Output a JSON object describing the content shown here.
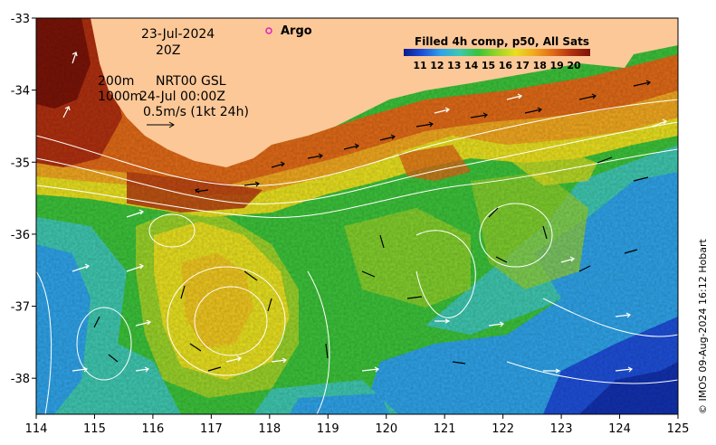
{
  "map": {
    "lon_ticks": [
      "114",
      "115",
      "116",
      "117",
      "118",
      "119",
      "120",
      "121",
      "122",
      "123",
      "124",
      "125"
    ],
    "lat_ticks": [
      "-33",
      "-34",
      "-35",
      "-36",
      "-37",
      "-38"
    ],
    "lon_range": [
      114,
      125
    ],
    "lat_range": [
      -38.5,
      -33
    ]
  },
  "annotations": {
    "date": "23-Jul-2024",
    "time": "20Z",
    "isobath_shallow": "200m",
    "isobath_deep": "1000m",
    "product": "NRT00 GSL",
    "product_time": "24-Jul 00:00Z",
    "scale_vector": "0.5m/s (1kt 24h)"
  },
  "legend": {
    "argo_label": "Argo",
    "argo_color": "#e020c0"
  },
  "colorbar": {
    "title": "Filled 4h comp, p50, All Sats",
    "labels": [
      "11",
      "12",
      "13",
      "14",
      "15",
      "16",
      "17",
      "18",
      "19",
      "20"
    ],
    "colors": [
      "#0a1a8c",
      "#1e4fd8",
      "#2fa3e8",
      "#3fc7b0",
      "#3cc23a",
      "#9ad22a",
      "#e8e020",
      "#f0a820",
      "#e06a18",
      "#b03010",
      "#7a1408"
    ]
  },
  "credit": "© IMOS 09-Aug-2024 16:12 Hobart",
  "colors": {
    "land": "#fcc898",
    "contour": "#ffffff",
    "vector_dark": "#000000",
    "vector_light": "#ffffff"
  }
}
